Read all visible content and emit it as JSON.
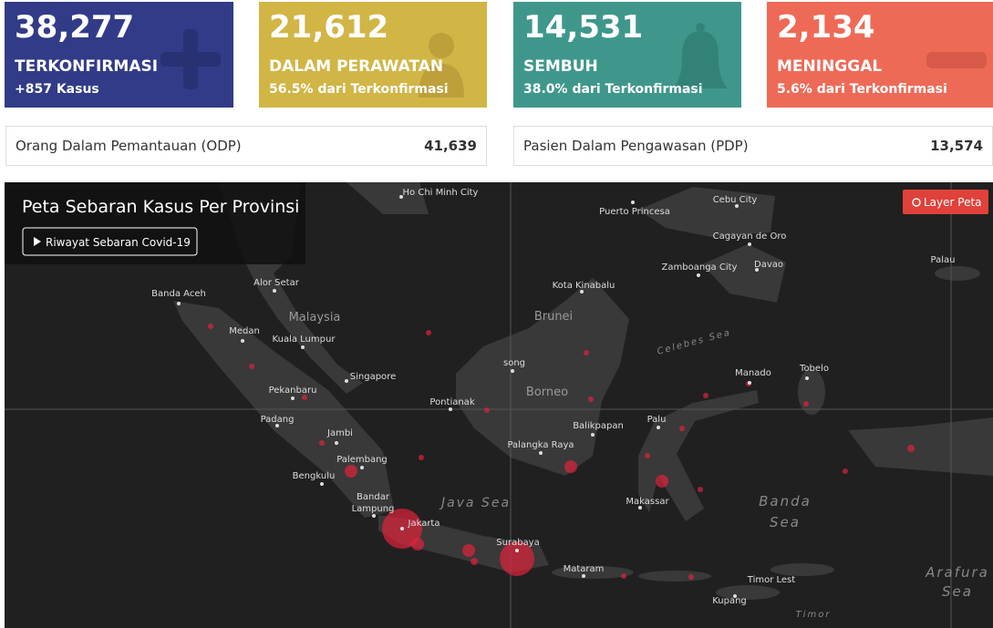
{
  "stats": [
    {
      "value": "38,277",
      "label": "TERKONFIRMASI",
      "sub": "+857 Kasus"
    },
    {
      "value": "21,612",
      "label": "DALAM PERAWATAN",
      "sub": "56.5% dari Terkonfirmasi"
    },
    {
      "value": "14,531",
      "label": "SEMBUH",
      "sub": "38.0% dari Terkonfirmasi"
    },
    {
      "value": "2,134",
      "label": "MENINGGAL",
      "sub": "5.6% dari Terkonfirmasi"
    }
  ],
  "monitoring": [
    {
      "label": "Orang Dalam Pemantauan (ODP)",
      "value": "41,639"
    },
    {
      "label": "Pasien Dalam Pengawasan (PDP)",
      "value": "13,574"
    }
  ],
  "map": {
    "title": "Peta Sebaran Kasus Per Provinsi",
    "history_button": "Riwayat Sebaran Covid-19",
    "layer_button": "Layer Peta",
    "places": [
      "Ho Chi Minh City",
      "Puerto Princesa",
      "Cebu City",
      "Cagayan de Oro",
      "Zamboanga City",
      "Davao",
      "Palau",
      "Banda Aceh",
      "Alor Setar",
      "Medan",
      "Kuala Lumpur",
      "Kota Kinabalu",
      "Singapore",
      "song",
      "Pekanbaru",
      "Pontianak",
      "Manado",
      "Tobelo",
      "Padang",
      "Jambi",
      "Balikpapan",
      "Palu",
      "Palembang",
      "Palangka Raya",
      "Bengkulu",
      "Bandar",
      "Lampung",
      "Makassar",
      "Jakarta",
      "Surabaya",
      "Mataram",
      "Timor Lest",
      "Kupang"
    ],
    "regions": [
      "Malaysia",
      "Brunei",
      "Borneo"
    ],
    "seas": [
      "Java Sea",
      "Banda",
      "Sea",
      "Arafura",
      "Sea",
      "Celebes Sea",
      "Timor"
    ]
  }
}
